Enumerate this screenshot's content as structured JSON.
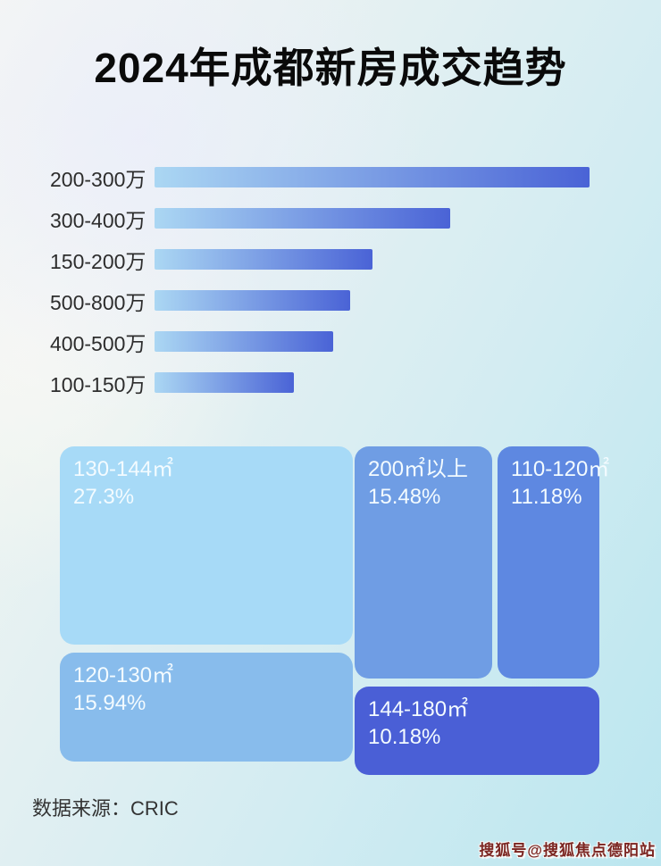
{
  "page": {
    "title": "2024年成都新房成交趋势",
    "footer": {
      "source_label": "数据来源：CRIC"
    },
    "watermark": "搜狐号@搜狐焦点德阳站"
  },
  "colors": {
    "title_color": "#0a0a0a",
    "bar_label_color": "#2d2d2d",
    "bar_gradient_start": "#abd7f3",
    "bar_gradient_end": "#4a63d6",
    "treemap_text_color": "#f3fbff",
    "source_text_color": "#333333",
    "watermark_color": "#7b2521",
    "background_start": "#f6f7f3",
    "background_end": "#bbe6ef"
  },
  "chart_data": [
    {
      "type": "bar",
      "orientation": "horizontal",
      "title": "2024年成都新房成交趋势",
      "categories": [
        "200-300万",
        "300-400万",
        "150-200万",
        "500-800万",
        "400-500万",
        "100-150万"
      ],
      "values": [
        1.0,
        0.68,
        0.5,
        0.45,
        0.41,
        0.32
      ],
      "value_note": "relative bar lengths (fraction of longest bar); no numeric axis shown in image",
      "xlabel": "",
      "ylabel": "",
      "grid": false,
      "legend": false,
      "bar_color_gradient": [
        "#abd7f3",
        "#4a63d6"
      ]
    },
    {
      "type": "treemap",
      "title": "",
      "blocks": [
        {
          "label": "130-144㎡",
          "value": "27.3%",
          "color": "#a7daf7"
        },
        {
          "label": "200㎡以上",
          "value": "15.48%",
          "color": "#6f9de4"
        },
        {
          "label": "120-130㎡",
          "value": "15.94%",
          "color": "#88bcec"
        },
        {
          "label": "110-120㎡",
          "value": "11.18%",
          "color": "#5e88e1"
        },
        {
          "label": "144-180㎡",
          "value": "10.18%",
          "color": "#4a5fd6"
        }
      ]
    }
  ]
}
